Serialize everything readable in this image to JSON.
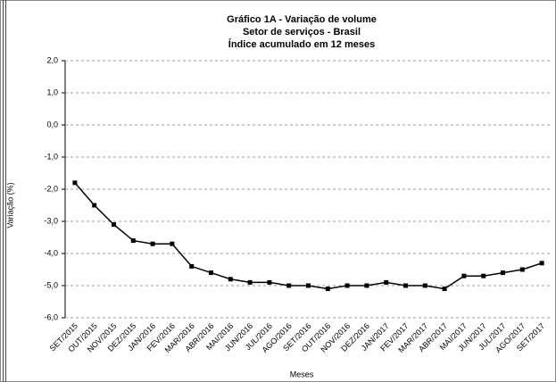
{
  "chart_data": {
    "type": "line",
    "title": "Gráfico 1A - Variação de volume",
    "subtitle": [
      "Setor de serviços - Brasil",
      "Índice acumulado em 12 meses"
    ],
    "y_label": "Variação (%)",
    "x_label": "Meses",
    "categories": [
      "SET/2015",
      "OUT/2015",
      "NOV/2015",
      "DEZ/2015",
      "JAN/2016",
      "FEV/2016",
      "MAR/2016",
      "ABR/2016",
      "MAI/2016",
      "JUN/2016",
      "JUL/2016",
      "AGO/2016",
      "SET/2016",
      "OUT/2016",
      "NOV/2016",
      "DEZ/2016",
      "JAN/2017",
      "FEV/2017",
      "MAR/2017",
      "ABR/2017",
      "MAI/2017",
      "JUN/2017",
      "JUL/2017",
      "AGO/2017",
      "SET/2017"
    ],
    "values": [
      -1.8,
      -2.5,
      -3.1,
      -3.6,
      -3.7,
      -3.7,
      -4.4,
      -4.6,
      -4.8,
      -4.9,
      -4.9,
      -5.0,
      -5.0,
      -5.1,
      -5.0,
      -5.0,
      -4.9,
      -5.0,
      -5.0,
      -5.1,
      -4.7,
      -4.7,
      -4.6,
      -4.5,
      -4.3
    ],
    "color": "#000000",
    "ylim": [
      -6,
      2
    ],
    "yticks": [
      {
        "value": 2,
        "label": "2,0"
      },
      {
        "value": 1,
        "label": "1,0"
      },
      {
        "value": 0,
        "label": "0,0"
      },
      {
        "value": -1,
        "label": "-1,0"
      },
      {
        "value": -2,
        "label": "-2,0"
      },
      {
        "value": -3,
        "label": "-3,0"
      },
      {
        "value": -4,
        "label": "-4,0"
      },
      {
        "value": -5,
        "label": "-5,0"
      },
      {
        "value": -6,
        "label": "-6,0"
      }
    ],
    "grid": true
  }
}
